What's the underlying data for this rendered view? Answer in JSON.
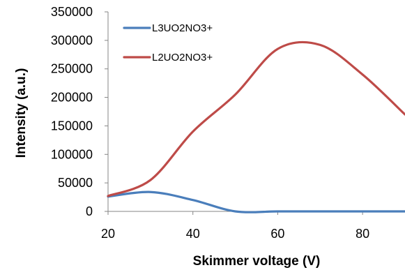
{
  "chart_data": {
    "type": "line",
    "title": "",
    "xlabel": "Skimmer voltage (V)",
    "ylabel": "Intensity (a.u.)",
    "xlim": [
      20,
      90
    ],
    "ylim": [
      0,
      350000
    ],
    "x_ticks": [
      20,
      40,
      60,
      80
    ],
    "x_tick_labels": [
      "20",
      "40",
      "60",
      "80"
    ],
    "y_ticks": [
      0,
      50000,
      100000,
      150000,
      200000,
      250000,
      300000,
      350000
    ],
    "y_tick_labels": [
      "0",
      "50000",
      "100000",
      "150000",
      "200000",
      "250000",
      "300000",
      "350000"
    ],
    "grid": false,
    "legend_position": "top-left",
    "series": [
      {
        "name": "L3UO2NO3+",
        "color": "#4a7ebb",
        "x": [
          20,
          30,
          40,
          50,
          60,
          70,
          80,
          90
        ],
        "y": [
          26000,
          34000,
          20000,
          0,
          0,
          0,
          0,
          0
        ]
      },
      {
        "name": "L2UO2NO3+",
        "color": "#be4b48",
        "x": [
          20,
          30,
          40,
          50,
          60,
          70,
          80,
          90
        ],
        "y": [
          27000,
          55000,
          140000,
          205000,
          285000,
          292000,
          240000,
          170000
        ]
      }
    ]
  }
}
